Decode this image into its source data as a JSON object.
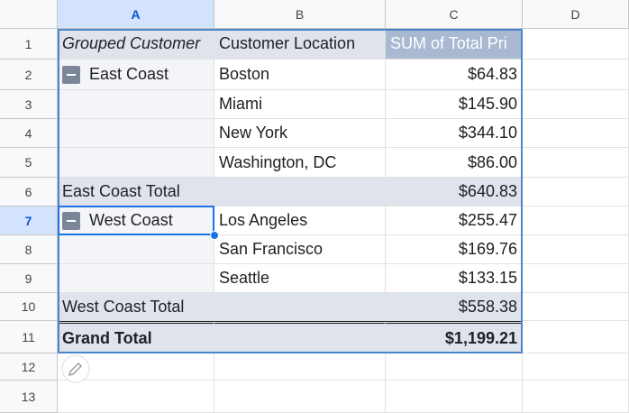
{
  "column_headers": [
    "A",
    "B",
    "C",
    "D"
  ],
  "row_headers": [
    "1",
    "2",
    "3",
    "4",
    "5",
    "6",
    "7",
    "8",
    "9",
    "10",
    "11",
    "12",
    "13"
  ],
  "pivot": {
    "header": [
      "Grouped Customer",
      "Customer Location",
      "SUM of Total Pri"
    ],
    "groups": [
      {
        "name": "East Coast",
        "rows": [
          {
            "location": "Boston",
            "value": "$64.83"
          },
          {
            "location": "Miami",
            "value": "$145.90"
          },
          {
            "location": "New York",
            "value": "$344.10"
          },
          {
            "location": "Washington, DC",
            "value": "$86.00"
          }
        ],
        "total_label": "East Coast Total",
        "total_value": "$640.83"
      },
      {
        "name": "West Coast",
        "rows": [
          {
            "location": "Los Angeles",
            "value": "$255.47"
          },
          {
            "location": "San Francisco",
            "value": "$169.76"
          },
          {
            "location": "Seattle",
            "value": "$133.15"
          }
        ],
        "total_label": "West Coast Total",
        "total_value": "$558.38"
      }
    ],
    "grand_total_label": "Grand Total",
    "grand_total_value": "$1,199.21"
  }
}
